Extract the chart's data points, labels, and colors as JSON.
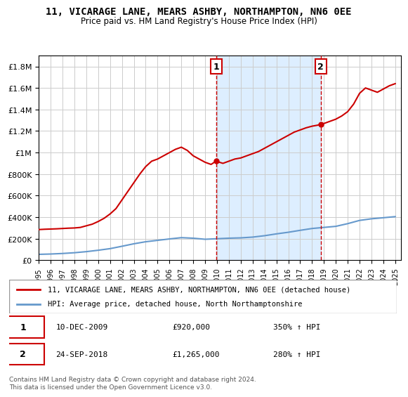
{
  "title": "11, VICARAGE LANE, MEARS ASHBY, NORTHAMPTON, NN6 0EE",
  "subtitle": "Price paid vs. HM Land Registry's House Price Index (HPI)",
  "legend_line1": "11, VICARAGE LANE, MEARS ASHBY, NORTHAMPTON, NN6 0EE (detached house)",
  "legend_line2": "HPI: Average price, detached house, North Northamptonshire",
  "annotation1_label": "1",
  "annotation1_date": "10-DEC-2009",
  "annotation1_price": "£920,000",
  "annotation1_hpi": "350% ↑ HPI",
  "annotation2_label": "2",
  "annotation2_date": "24-SEP-2018",
  "annotation2_price": "£1,265,000",
  "annotation2_hpi": "280% ↑ HPI",
  "footer": "Contains HM Land Registry data © Crown copyright and database right 2024.\nThis data is licensed under the Open Government Licence v3.0.",
  "transaction1_year": 2009.92,
  "transaction2_year": 2018.73,
  "red_color": "#cc0000",
  "blue_color": "#6699cc",
  "shade_color": "#ddeeff",
  "grid_color": "#cccccc",
  "bg_color": "#ffffff",
  "ylim": [
    0,
    1900000
  ],
  "xlim_start": 1995,
  "xlim_end": 2025.5,
  "hpi_years": [
    1995,
    1996,
    1997,
    1998,
    1999,
    2000,
    2001,
    2002,
    2003,
    2004,
    2005,
    2006,
    2007,
    2008,
    2009,
    2010,
    2011,
    2012,
    2013,
    2014,
    2015,
    2016,
    2017,
    2018,
    2019,
    2020,
    2021,
    2022,
    2023,
    2024,
    2025
  ],
  "hpi_values": [
    55000,
    58000,
    63000,
    70000,
    80000,
    93000,
    108000,
    130000,
    153000,
    172000,
    185000,
    198000,
    210000,
    205000,
    195000,
    200000,
    205000,
    208000,
    215000,
    228000,
    245000,
    260000,
    278000,
    295000,
    305000,
    315000,
    340000,
    370000,
    385000,
    395000,
    405000
  ],
  "house_years": [
    1995.0,
    1995.5,
    1996.0,
    1996.5,
    1997.0,
    1997.5,
    1998.0,
    1998.5,
    1999.0,
    1999.5,
    2000.0,
    2000.5,
    2001.0,
    2001.5,
    2002.0,
    2002.5,
    2003.0,
    2003.5,
    2004.0,
    2004.5,
    2005.0,
    2005.5,
    2006.0,
    2006.5,
    2007.0,
    2007.5,
    2008.0,
    2008.5,
    2009.0,
    2009.5,
    2009.92,
    2010.5,
    2011.0,
    2011.5,
    2012.0,
    2012.5,
    2013.0,
    2013.5,
    2014.0,
    2014.5,
    2015.0,
    2015.5,
    2016.0,
    2016.5,
    2017.0,
    2017.5,
    2018.0,
    2018.5,
    2018.73,
    2019.0,
    2019.5,
    2020.0,
    2020.5,
    2021.0,
    2021.5,
    2022.0,
    2022.5,
    2023.0,
    2023.5,
    2024.0,
    2024.5,
    2025.0
  ],
  "house_values": [
    285000,
    288000,
    290000,
    292000,
    295000,
    298000,
    300000,
    305000,
    320000,
    335000,
    360000,
    390000,
    430000,
    480000,
    560000,
    640000,
    720000,
    800000,
    870000,
    920000,
    940000,
    970000,
    1000000,
    1030000,
    1050000,
    1020000,
    970000,
    940000,
    910000,
    890000,
    920000,
    900000,
    920000,
    940000,
    950000,
    970000,
    990000,
    1010000,
    1040000,
    1070000,
    1100000,
    1130000,
    1160000,
    1190000,
    1210000,
    1230000,
    1245000,
    1255000,
    1265000,
    1270000,
    1290000,
    1310000,
    1340000,
    1380000,
    1450000,
    1550000,
    1600000,
    1580000,
    1560000,
    1590000,
    1620000,
    1640000
  ]
}
